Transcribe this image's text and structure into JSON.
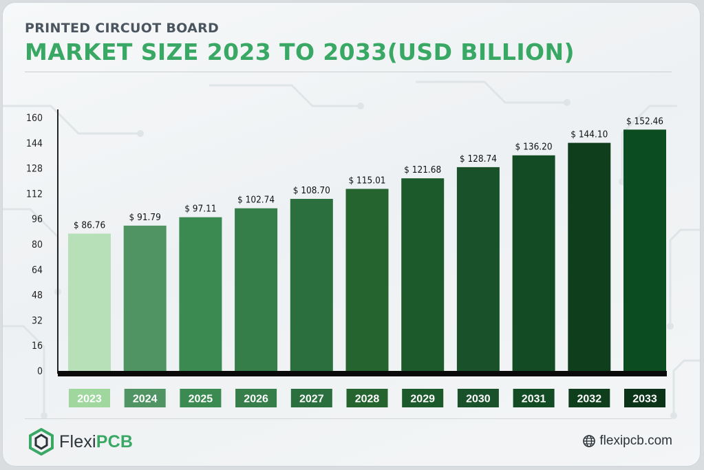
{
  "header": {
    "subtitle": "PRINTED CIRCUOT BOARD",
    "title": "MARKET SIZE 2023 TO 2033(USD BILLION)"
  },
  "chart_data": {
    "type": "bar",
    "title": "MARKET SIZE 2023 TO 2033(USD BILLION)",
    "subtitle": "PRINTED CIRCUOT BOARD",
    "categories": [
      "2023",
      "2024",
      "2025",
      "2026",
      "2027",
      "2028",
      "2029",
      "2030",
      "2031",
      "2032",
      "2033"
    ],
    "values": [
      86.76,
      91.79,
      97.11,
      102.74,
      108.7,
      115.01,
      121.68,
      128.74,
      136.2,
      144.1,
      152.46
    ],
    "value_labels": [
      "$ 86.76",
      "$ 91.79",
      "$ 97.11",
      "$ 102.74",
      "$ 108.70",
      "$ 115.01",
      "$ 121.68",
      "$ 128.74",
      "$ 136.20",
      "$ 144.10",
      "$ 152.46"
    ],
    "yticks": [
      "0",
      "16",
      "32",
      "48",
      "64",
      "80",
      "96",
      "112",
      "128",
      "144",
      "160"
    ],
    "ylim": [
      0,
      160
    ],
    "xlabel": "",
    "ylabel": "",
    "grid": false,
    "bar_colors": [
      "#b8e0b8",
      "#4f9462",
      "#3b8a51",
      "#357d49",
      "#2a6f3d",
      "#25632f",
      "#1d5a2b",
      "#18512a",
      "#124b24",
      "#0e3e1c",
      "#0b4d20"
    ],
    "year_label_colors": [
      "#9fd79f",
      "#4f9462",
      "#3b8a51",
      "#357d49",
      "#2a6f3d",
      "#25632f",
      "#1d5a2b",
      "#18512a",
      "#124b24",
      "#0e3e1c",
      "#0b3318"
    ]
  },
  "footer": {
    "brand_prefix": "Flexi",
    "brand_highlight": "PCB",
    "website": "flexipcb.com",
    "accent_color": "#3aa865"
  }
}
